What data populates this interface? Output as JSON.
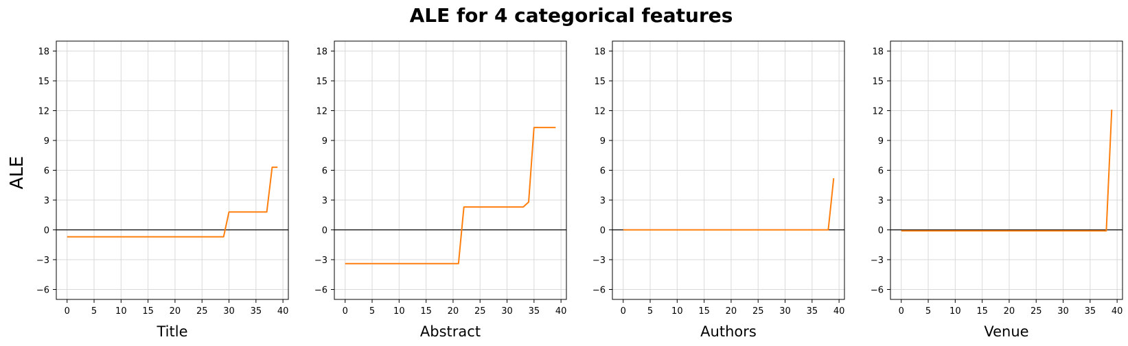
{
  "figure": {
    "title": "ALE for 4 categorical features",
    "ylabel": "ALE"
  },
  "colors": {
    "line": "#ff7f0e",
    "zero_line": "#000000",
    "grid": "#d9d9d9"
  },
  "chart_data": [
    {
      "type": "line",
      "xlabel": "Title",
      "xlim": [
        -2,
        41
      ],
      "ylim": [
        -7,
        19
      ],
      "xticks": [
        0,
        5,
        10,
        15,
        20,
        25,
        30,
        35,
        40
      ],
      "yticks": [
        -6,
        -3,
        0,
        3,
        6,
        9,
        12,
        15,
        18
      ],
      "grid": true,
      "zero_line": 0,
      "x": [
        0,
        29,
        30,
        37,
        38,
        39
      ],
      "y": [
        -0.7,
        -0.7,
        1.8,
        1.8,
        6.3,
        6.3
      ]
    },
    {
      "type": "line",
      "xlabel": "Abstract",
      "xlim": [
        -2,
        41
      ],
      "ylim": [
        -7,
        19
      ],
      "xticks": [
        0,
        5,
        10,
        15,
        20,
        25,
        30,
        35,
        40
      ],
      "yticks": [
        -6,
        -3,
        0,
        3,
        6,
        9,
        12,
        15,
        18
      ],
      "grid": true,
      "zero_line": 0,
      "x": [
        0,
        21,
        22,
        33,
        34,
        35,
        39
      ],
      "y": [
        -3.4,
        -3.4,
        2.3,
        2.3,
        2.8,
        10.3,
        10.3
      ]
    },
    {
      "type": "line",
      "xlabel": "Authors",
      "xlim": [
        -2,
        41
      ],
      "ylim": [
        -7,
        19
      ],
      "xticks": [
        0,
        5,
        10,
        15,
        20,
        25,
        30,
        35,
        40
      ],
      "yticks": [
        -6,
        -3,
        0,
        3,
        6,
        9,
        12,
        15,
        18
      ],
      "grid": true,
      "zero_line": 0,
      "x": [
        0,
        38,
        39
      ],
      "y": [
        0.0,
        0.0,
        5.2
      ]
    },
    {
      "type": "line",
      "xlabel": "Venue",
      "xlim": [
        -2,
        41
      ],
      "ylim": [
        -7,
        19
      ],
      "xticks": [
        0,
        5,
        10,
        15,
        20,
        25,
        30,
        35,
        40
      ],
      "yticks": [
        -6,
        -3,
        0,
        3,
        6,
        9,
        12,
        15,
        18
      ],
      "grid": true,
      "zero_line": 0,
      "x": [
        0,
        38,
        39
      ],
      "y": [
        -0.1,
        -0.1,
        12.1
      ]
    }
  ]
}
